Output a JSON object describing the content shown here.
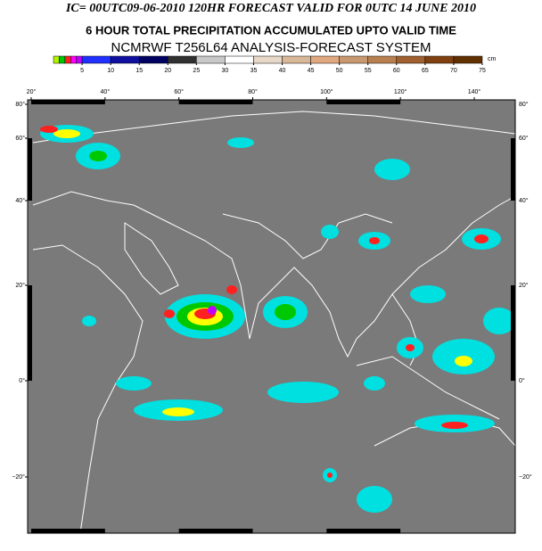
{
  "header": {
    "title": "IC= 00UTC09-06-2010 120HR FORECAST VALID FOR  0UTC  14 JUNE 2010",
    "subtitle": "6 HOUR TOTAL PRECIPITATION ACCUMULATED UPTO VALID TIME",
    "system": "NCMRWF T256L64 ANALYSIS-FORECAST SYSTEM"
  },
  "colorbar": {
    "unit": "cm",
    "bounds": [
      0,
      1,
      2,
      3,
      4,
      5,
      10,
      15,
      20,
      25,
      30,
      35,
      40,
      45,
      50,
      55,
      60,
      65,
      70,
      75
    ],
    "colors": [
      "#b4f000",
      "#00c800",
      "#ff2020",
      "#ff00ff",
      "#c000ff",
      "#2030ff",
      "#1010a0",
      "#000060",
      "#303030",
      "#c8c8c8",
      "#ffffff",
      "#e8d8c8",
      "#d8b898",
      "#e0a880",
      "#c89870",
      "#b88050",
      "#a06030",
      "#804010",
      "#603000"
    ],
    "ticks": [
      5,
      10,
      15,
      20,
      25,
      30,
      35,
      40,
      45,
      50,
      55,
      60,
      65,
      70,
      75
    ]
  },
  "map": {
    "xticks": [
      {
        "value": 20,
        "label": "20°"
      },
      {
        "value": 40,
        "label": "40°"
      },
      {
        "value": 60,
        "label": "60°"
      },
      {
        "value": 80,
        "label": "80°"
      },
      {
        "value": 100,
        "label": "100°"
      },
      {
        "value": 120,
        "label": "120°"
      },
      {
        "value": 140,
        "label": "140°"
      }
    ],
    "yticks": [
      {
        "value": 80,
        "label": "80°"
      },
      {
        "value": 60,
        "label": "60°"
      },
      {
        "value": 40,
        "label": "40°"
      },
      {
        "value": 20,
        "label": "20°"
      },
      {
        "value": 0,
        "label": "0°"
      },
      {
        "value": -20,
        "label": "−20°"
      }
    ]
  }
}
